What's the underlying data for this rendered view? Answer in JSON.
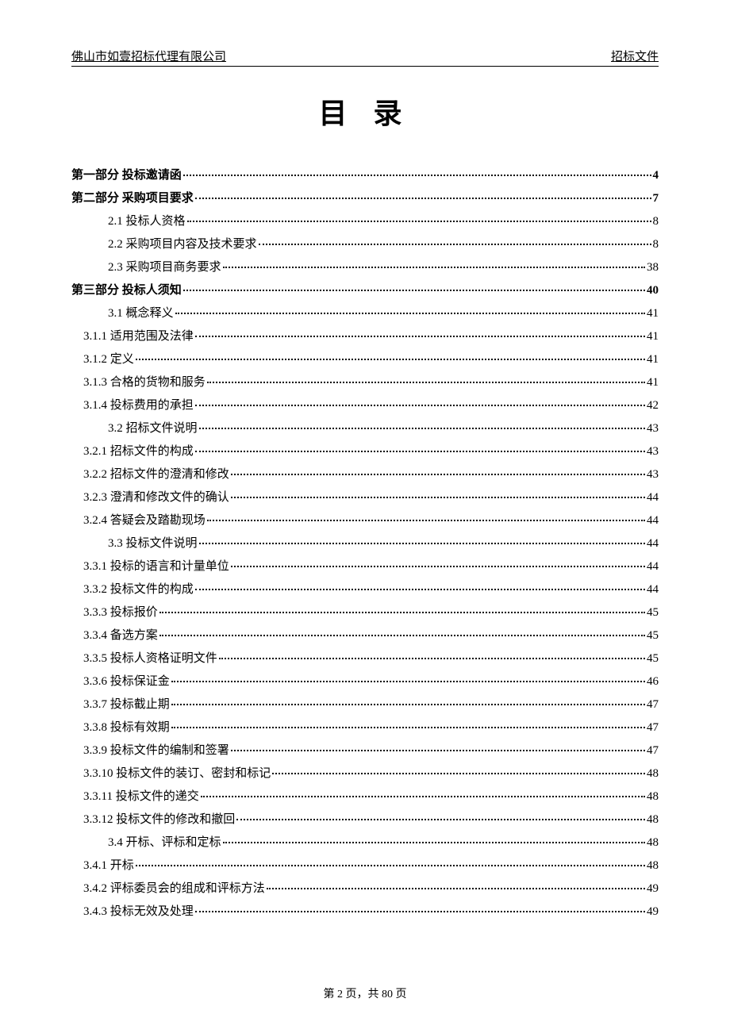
{
  "header": {
    "left": "佛山市如壹招标代理有限公司",
    "right": "招标文件"
  },
  "title": "目 录",
  "toc": [
    {
      "label": "第一部分  投标邀请函",
      "page": "4",
      "bold": true,
      "indent": 0
    },
    {
      "label": "第二部分  采购项目要求",
      "page": "7",
      "bold": true,
      "indent": 0
    },
    {
      "label": "2.1  投标人资格",
      "page": "8",
      "bold": false,
      "indent": 1
    },
    {
      "label": "2.2  采购项目内容及技术要求",
      "page": "8",
      "bold": false,
      "indent": 1
    },
    {
      "label": "2.3  采购项目商务要求",
      "page": "38",
      "bold": false,
      "indent": 1
    },
    {
      "label": "第三部分  投标人须知",
      "page": "40",
      "bold": true,
      "indent": 0
    },
    {
      "label": "3.1  概念释义",
      "page": "41",
      "bold": false,
      "indent": 1
    },
    {
      "label": "3.1.1 适用范围及法律",
      "page": "41",
      "bold": false,
      "indent": 2
    },
    {
      "label": "3.1.2 定义",
      "page": "41",
      "bold": false,
      "indent": 2
    },
    {
      "label": "3.1.3 合格的货物和服务",
      "page": "41",
      "bold": false,
      "indent": 2
    },
    {
      "label": "3.1.4 投标费用的承担",
      "page": "42",
      "bold": false,
      "indent": 2
    },
    {
      "label": "3.2  招标文件说明",
      "page": "43",
      "bold": false,
      "indent": 1
    },
    {
      "label": "3.2.1 招标文件的构成",
      "page": "43",
      "bold": false,
      "indent": 2
    },
    {
      "label": "3.2.2 招标文件的澄清和修改",
      "page": "43",
      "bold": false,
      "indent": 2
    },
    {
      "label": "3.2.3 澄清和修改文件的确认",
      "page": "44",
      "bold": false,
      "indent": 2
    },
    {
      "label": "3.2.4 答疑会及踏勘现场",
      "page": "44",
      "bold": false,
      "indent": 2
    },
    {
      "label": "3.3  投标文件说明",
      "page": "44",
      "bold": false,
      "indent": 1
    },
    {
      "label": "3.3.1 投标的语言和计量单位",
      "page": "44",
      "bold": false,
      "indent": 2
    },
    {
      "label": "3.3.2 投标文件的构成",
      "page": "44",
      "bold": false,
      "indent": 2
    },
    {
      "label": "3.3.3 投标报价",
      "page": "45",
      "bold": false,
      "indent": 2
    },
    {
      "label": "3.3.4 备选方案",
      "page": "45",
      "bold": false,
      "indent": 2
    },
    {
      "label": "3.3.5 投标人资格证明文件",
      "page": "45",
      "bold": false,
      "indent": 2
    },
    {
      "label": "3.3.6 投标保证金",
      "page": "46",
      "bold": false,
      "indent": 2
    },
    {
      "label": "3.3.7 投标截止期",
      "page": "47",
      "bold": false,
      "indent": 2
    },
    {
      "label": "3.3.8 投标有效期",
      "page": "47",
      "bold": false,
      "indent": 2
    },
    {
      "label": "3.3.9 投标文件的编制和签署",
      "page": "47",
      "bold": false,
      "indent": 2
    },
    {
      "label": "3.3.10 投标文件的装订、密封和标记",
      "page": "48",
      "bold": false,
      "indent": 2
    },
    {
      "label": "3.3.11 投标文件的递交",
      "page": "48",
      "bold": false,
      "indent": 2
    },
    {
      "label": "3.3.12 投标文件的修改和撤回",
      "page": "48",
      "bold": false,
      "indent": 2
    },
    {
      "label": "3.4  开标、评标和定标",
      "page": "48",
      "bold": false,
      "indent": 1
    },
    {
      "label": "3.4.1 开标",
      "page": "48",
      "bold": false,
      "indent": 2
    },
    {
      "label": "3.4.2 评标委员会的组成和评标方法",
      "page": "49",
      "bold": false,
      "indent": 2
    },
    {
      "label": "3.4.3 投标无效及处理",
      "page": "49",
      "bold": false,
      "indent": 2
    }
  ],
  "footer": "第 2 页，共 80 页",
  "colors": {
    "text": "#000000",
    "background": "#ffffff"
  },
  "fonts": {
    "body_family": "SimSun",
    "title_size": 36,
    "body_size": 15,
    "footer_size": 14
  }
}
